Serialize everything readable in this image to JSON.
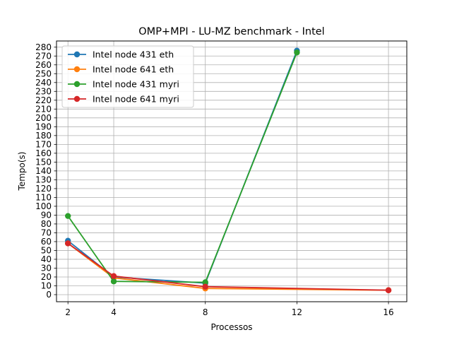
{
  "chart_data": {
    "type": "line",
    "title": "OMP+MPI - LU-MZ benchmark - Intel",
    "xlabel": "Processos",
    "ylabel": "Tempo(s)",
    "x": [
      2,
      4,
      8,
      12,
      16
    ],
    "x_tick_labels": [
      "2",
      "4",
      "8",
      "12",
      "16"
    ],
    "xlim": [
      1.5,
      16.8
    ],
    "ylim": [
      -8,
      287
    ],
    "y_ticks": [
      0,
      10,
      20,
      30,
      40,
      50,
      60,
      70,
      80,
      90,
      100,
      110,
      120,
      130,
      140,
      150,
      160,
      170,
      180,
      190,
      200,
      210,
      220,
      230,
      240,
      250,
      260,
      270,
      280
    ],
    "y_tick_labels": [
      "0",
      "10",
      "20",
      "30",
      "40",
      "50",
      "60",
      "70",
      "80",
      "90",
      "100",
      "110",
      "120",
      "130",
      "140",
      "150",
      "160",
      "170",
      "180",
      "190",
      "200",
      "210",
      "220",
      "230",
      "240",
      "250",
      "260",
      "270",
      "280"
    ],
    "grid": true,
    "legend_position": "top-left",
    "series": [
      {
        "name": "Intel node 431 eth",
        "color": "#1f77b4",
        "x": [
          2,
          4,
          8,
          12
        ],
        "values": [
          61,
          20,
          13,
          276
        ]
      },
      {
        "name": "Intel node 641 eth",
        "color": "#ff7f0e",
        "x": [
          2,
          4,
          8,
          16
        ],
        "values": [
          58,
          19,
          7,
          5
        ]
      },
      {
        "name": "Intel node 431 myri",
        "color": "#2ca02c",
        "x": [
          2,
          4,
          8,
          12
        ],
        "values": [
          89,
          15,
          14,
          274
        ]
      },
      {
        "name": "Intel node 641 myri",
        "color": "#d62728",
        "x": [
          2,
          4,
          8,
          16
        ],
        "values": [
          58,
          21,
          9,
          5
        ]
      }
    ]
  }
}
